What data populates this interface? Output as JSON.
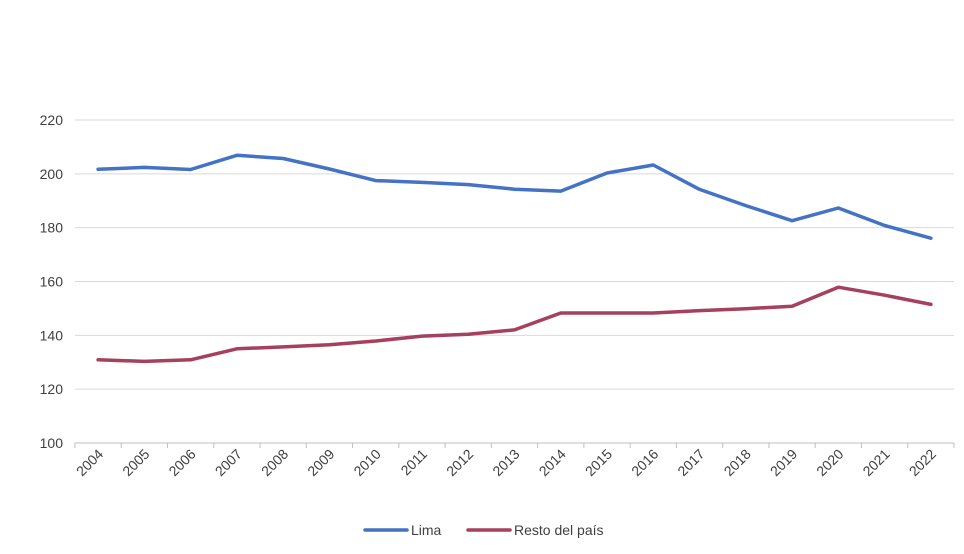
{
  "chart_data": {
    "type": "line",
    "title": "",
    "xlabel": "",
    "ylabel": "",
    "categories": [
      "2004",
      "2005",
      "2006",
      "2007",
      "2008",
      "2009",
      "2010",
      "2011",
      "2012",
      "2013",
      "2014",
      "2015",
      "2016",
      "2017",
      "2018",
      "2019",
      "2020",
      "2021",
      "2022"
    ],
    "ylim": [
      100,
      220
    ],
    "yticks": [
      100,
      120,
      140,
      160,
      180,
      200,
      220
    ],
    "grid": true,
    "legend_position": "bottom-center",
    "series": [
      {
        "name": "Lima",
        "color": "#4472C4",
        "values": [
          201.7,
          202.4,
          201.6,
          206.9,
          205.7,
          201.8,
          197.5,
          196.8,
          196.0,
          194.3,
          193.6,
          200.3,
          203.3,
          194.2,
          188.2,
          182.6,
          187.3,
          180.8,
          176.1
        ]
      },
      {
        "name": "Resto del país",
        "color": "#A5405F",
        "values": [
          130.9,
          130.3,
          130.9,
          135.0,
          135.7,
          136.5,
          137.9,
          139.7,
          140.4,
          142.0,
          148.3,
          148.3,
          148.3,
          149.2,
          149.9,
          150.8,
          157.9,
          154.9,
          151.5
        ]
      }
    ]
  }
}
